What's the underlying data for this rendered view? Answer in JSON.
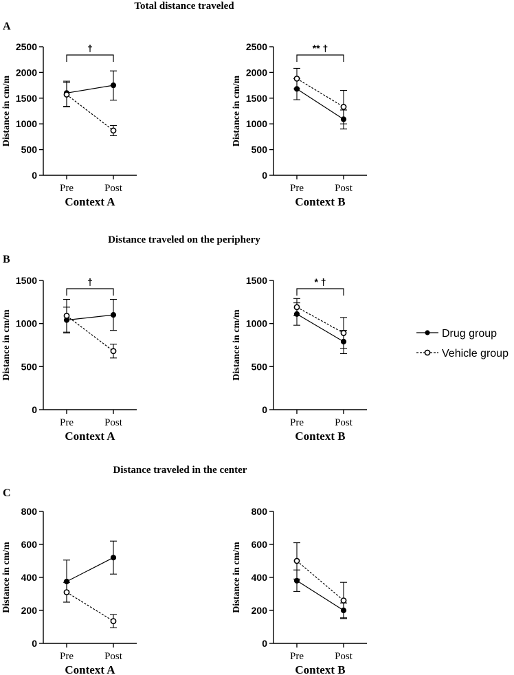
{
  "rows": [
    {
      "letter": "A",
      "title": "Total distance traveled"
    },
    {
      "letter": "B",
      "title": "Distance traveled on the periphery"
    },
    {
      "letter": "C",
      "title": "Distance traveled in the center"
    }
  ],
  "legend": {
    "drug": "Drug group",
    "vehicle": "Vehicle group"
  },
  "chart_data": [
    {
      "type": "line",
      "row": 0,
      "col": 0,
      "xlabel": "Context A",
      "ylabel": "Distance in cm/m",
      "categories": [
        "Pre",
        "Post"
      ],
      "ylim": [
        0,
        2500
      ],
      "yticks": [
        0,
        500,
        1000,
        1500,
        2000,
        2500
      ],
      "annotation": "†",
      "series": [
        {
          "name": "Drug group",
          "style": "solid",
          "values": [
            1600,
            1750
          ],
          "err_low": [
            1340,
            1460
          ],
          "err_high": [
            1830,
            2030
          ]
        },
        {
          "name": "Vehicle group",
          "style": "dashed",
          "values": [
            1570,
            870
          ],
          "err_low": [
            1330,
            770
          ],
          "err_high": [
            1800,
            970
          ]
        }
      ]
    },
    {
      "type": "line",
      "row": 0,
      "col": 1,
      "xlabel": "Context B",
      "ylabel": "Distance in cm/m",
      "categories": [
        "Pre",
        "Post"
      ],
      "ylim": [
        0,
        2500
      ],
      "yticks": [
        0,
        500,
        1000,
        1500,
        2000,
        2500
      ],
      "annotation": "** †",
      "series": [
        {
          "name": "Drug group",
          "style": "solid",
          "values": [
            1680,
            1090
          ],
          "err_low": [
            1470,
            900
          ],
          "err_high": [
            1880,
            1270
          ]
        },
        {
          "name": "Vehicle group",
          "style": "dashed",
          "values": [
            1880,
            1330
          ],
          "err_low": [
            1680,
            1000
          ],
          "err_high": [
            2080,
            1650
          ]
        }
      ]
    },
    {
      "type": "line",
      "row": 1,
      "col": 0,
      "xlabel": "Context A",
      "ylabel": "Distance in cm/m",
      "categories": [
        "Pre",
        "Post"
      ],
      "ylim": [
        0,
        1500
      ],
      "yticks": [
        0,
        500,
        1000,
        1500
      ],
      "annotation": "†",
      "series": [
        {
          "name": "Drug group",
          "style": "solid",
          "values": [
            1040,
            1100
          ],
          "err_low": [
            890,
            920
          ],
          "err_high": [
            1190,
            1280
          ]
        },
        {
          "name": "Vehicle group",
          "style": "dashed",
          "values": [
            1090,
            680
          ],
          "err_low": [
            900,
            600
          ],
          "err_high": [
            1280,
            760
          ]
        }
      ]
    },
    {
      "type": "line",
      "row": 1,
      "col": 1,
      "xlabel": "Context B",
      "ylabel": "Distance in cm/m",
      "categories": [
        "Pre",
        "Post"
      ],
      "ylim": [
        0,
        1500
      ],
      "yticks": [
        0,
        500,
        1000,
        1500
      ],
      "annotation": "* †",
      "series": [
        {
          "name": "Drug group",
          "style": "solid",
          "values": [
            1110,
            790
          ],
          "err_low": [
            980,
            650
          ],
          "err_high": [
            1240,
            920
          ]
        },
        {
          "name": "Vehicle group",
          "style": "dashed",
          "values": [
            1190,
            890
          ],
          "err_low": [
            1090,
            710
          ],
          "err_high": [
            1290,
            1070
          ]
        }
      ]
    },
    {
      "type": "line",
      "row": 2,
      "col": 0,
      "xlabel": "Context A",
      "ylabel": "Distance in cm/m",
      "categories": [
        "Pre",
        "Post"
      ],
      "ylim": [
        0,
        800
      ],
      "yticks": [
        0,
        200,
        400,
        600,
        800
      ],
      "annotation": "",
      "series": [
        {
          "name": "Drug group",
          "style": "solid",
          "values": [
            375,
            520
          ],
          "err_low": [
            250,
            420
          ],
          "err_high": [
            505,
            620
          ]
        },
        {
          "name": "Vehicle group",
          "style": "dashed",
          "values": [
            310,
            135
          ],
          "err_low": [
            250,
            95
          ],
          "err_high": [
            370,
            175
          ]
        }
      ]
    },
    {
      "type": "line",
      "row": 2,
      "col": 1,
      "xlabel": "Context B",
      "ylabel": "Distance in cm/m",
      "categories": [
        "Pre",
        "Post"
      ],
      "ylim": [
        0,
        800
      ],
      "yticks": [
        0,
        200,
        400,
        600,
        800
      ],
      "annotation": "",
      "series": [
        {
          "name": "Drug group",
          "style": "solid",
          "values": [
            380,
            200
          ],
          "err_low": [
            315,
            155
          ],
          "err_high": [
            445,
            245
          ]
        },
        {
          "name": "Vehicle group",
          "style": "dashed",
          "values": [
            500,
            260
          ],
          "err_low": [
            390,
            150
          ],
          "err_high": [
            610,
            370
          ]
        }
      ]
    }
  ]
}
